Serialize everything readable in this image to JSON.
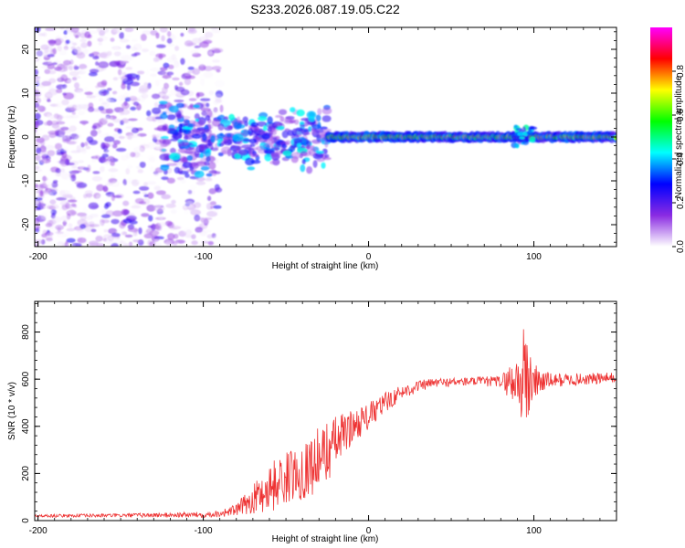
{
  "figure_title": "S233.2026.087.19.05.C22",
  "chart_data": [
    {
      "type": "heatmap",
      "title": "S233.2026.087.19.05.C22",
      "xlabel": "Height of straight line (km)",
      "ylabel": "Frequency (Hz)",
      "xlim": [
        -202,
        150
      ],
      "ylim": [
        -25,
        25
      ],
      "xticks": [
        -200,
        -100,
        0,
        100
      ],
      "xtick_labels": [
        "-200",
        "-100",
        "0",
        "100"
      ],
      "yticks": [
        -20,
        -10,
        0,
        10,
        20
      ],
      "ytick_labels": [
        "-20",
        "-10",
        "0",
        "10",
        "20"
      ],
      "colorbar": {
        "label": "Normalized spectral amplitude",
        "range": [
          0,
          1
        ],
        "ticks": [
          0.0,
          0.2,
          0.4,
          0.6,
          0.8
        ],
        "tick_labels": [
          "0.0",
          "0.2",
          "0.4",
          "0.6",
          "0.8"
        ],
        "colors": [
          "#ffffff",
          "#8a2be2",
          "#0000ff",
          "#00ffff",
          "#00ff00",
          "#ffff00",
          "#ff0000",
          "#ff00ff"
        ]
      },
      "regions": [
        {
          "name": "noise-scatter",
          "x_range": [
            -202,
            -90
          ],
          "freq_range": [
            -25,
            25
          ],
          "amplitude": [
            0.0,
            0.25
          ]
        },
        {
          "name": "transition-blobs",
          "x_range": [
            -125,
            -25
          ],
          "freq_range": [
            -12,
            8
          ],
          "amplitude": [
            0.1,
            0.45
          ]
        },
        {
          "name": "carrier-line",
          "x_range": [
            -25,
            150
          ],
          "freq_center": 0,
          "amplitude": [
            0.3,
            1.0
          ]
        }
      ]
    },
    {
      "type": "line",
      "xlabel": "Height of straight line (km)",
      "ylabel": "SNR (10 * v/v)",
      "xlim": [
        -202,
        150
      ],
      "ylim": [
        0,
        930
      ],
      "xticks": [
        -200,
        -100,
        0,
        100
      ],
      "xtick_labels": [
        "-200",
        "-100",
        "0",
        "100"
      ],
      "yticks": [
        0,
        200,
        400,
        600,
        800
      ],
      "ytick_labels": [
        "0",
        "200",
        "400",
        "600",
        "800"
      ],
      "color": "#ee3333",
      "series": [
        {
          "name": "SNR",
          "envelope_x": [
            -202,
            -150,
            -100,
            -90,
            -80,
            -70,
            -60,
            -50,
            -40,
            -30,
            -20,
            -10,
            0,
            10,
            20,
            30,
            40,
            60,
            80,
            90,
            95,
            100,
            110,
            130,
            150
          ],
          "envelope_mean": [
            20,
            22,
            25,
            30,
            45,
            90,
            140,
            180,
            210,
            260,
            330,
            400,
            440,
            500,
            545,
            570,
            585,
            590,
            590,
            590,
            600,
            590,
            595,
            600,
            605
          ],
          "envelope_spread": [
            6,
            8,
            12,
            15,
            25,
            60,
            110,
            110,
            120,
            140,
            120,
            70,
            60,
            45,
            30,
            25,
            20,
            18,
            25,
            120,
            260,
            80,
            30,
            25,
            25
          ]
        }
      ]
    }
  ]
}
